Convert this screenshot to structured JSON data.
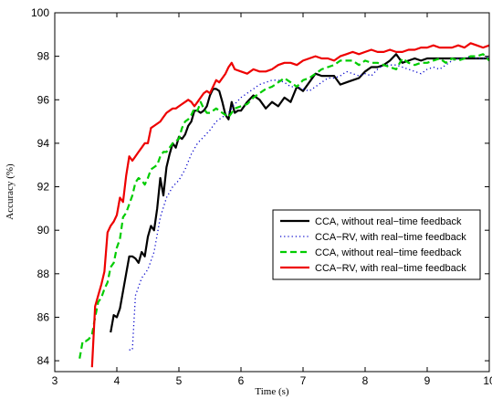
{
  "chart_data": {
    "type": "line",
    "title": "",
    "xlabel": "Time (s)",
    "ylabel": "Accuracy (%)",
    "xlim": [
      3,
      10
    ],
    "ylim": [
      83.5,
      100
    ],
    "xticks": [
      3,
      4,
      5,
      6,
      7,
      8,
      9,
      10
    ],
    "yticks": [
      84,
      86,
      88,
      90,
      92,
      94,
      96,
      98,
      100
    ],
    "grid": false,
    "legend_position": "right",
    "series": [
      {
        "name": "CCA, without real−time feedback",
        "color": "#000000",
        "style": "solid",
        "x": [
          3.9,
          3.95,
          4.0,
          4.05,
          4.1,
          4.15,
          4.2,
          4.25,
          4.3,
          4.35,
          4.4,
          4.45,
          4.5,
          4.55,
          4.6,
          4.65,
          4.7,
          4.75,
          4.8,
          4.85,
          4.9,
          4.95,
          5.0,
          5.05,
          5.1,
          5.15,
          5.2,
          5.25,
          5.3,
          5.35,
          5.4,
          5.45,
          5.5,
          5.55,
          5.6,
          5.65,
          5.7,
          5.75,
          5.8,
          5.85,
          5.9,
          5.95,
          6.0,
          6.1,
          6.2,
          6.3,
          6.4,
          6.5,
          6.6,
          6.7,
          6.8,
          6.9,
          7.0,
          7.1,
          7.2,
          7.3,
          7.4,
          7.5,
          7.6,
          7.7,
          7.8,
          7.9,
          8.0,
          8.1,
          8.2,
          8.3,
          8.4,
          8.5,
          8.6,
          8.7,
          8.8,
          8.9,
          9.0,
          9.1,
          9.2,
          9.3,
          9.4,
          9.5,
          9.6,
          9.7,
          9.8,
          9.9,
          10.0
        ],
        "values": [
          85.3,
          86.1,
          86.0,
          86.4,
          87.2,
          88.0,
          88.8,
          88.8,
          88.7,
          88.5,
          89.0,
          88.8,
          89.7,
          90.2,
          90.0,
          91.0,
          92.4,
          91.6,
          92.9,
          93.5,
          94.0,
          93.8,
          94.3,
          94.2,
          94.4,
          94.8,
          95.0,
          95.5,
          95.5,
          95.4,
          95.5,
          95.7,
          96.2,
          96.5,
          96.5,
          96.4,
          95.9,
          95.3,
          95.1,
          95.9,
          95.4,
          95.5,
          95.5,
          95.9,
          96.2,
          96.0,
          95.6,
          95.9,
          95.7,
          96.1,
          95.9,
          96.6,
          96.4,
          96.8,
          97.2,
          97.1,
          97.1,
          97.1,
          96.7,
          96.8,
          96.9,
          97.0,
          97.3,
          97.5,
          97.5,
          97.6,
          97.8,
          98.1,
          97.7,
          97.8,
          97.9,
          97.8,
          97.9,
          97.9,
          97.9,
          97.9,
          97.9,
          97.9,
          97.9,
          97.9,
          97.9,
          97.9,
          97.9
        ],
        "x_note": ""
      },
      {
        "name": "CCA−RV, with real−time feedback",
        "color": "#0000cc",
        "style": "dotted",
        "x": [
          4.2,
          4.25,
          4.3,
          4.4,
          4.5,
          4.6,
          4.7,
          4.8,
          4.9,
          5.0,
          5.1,
          5.2,
          5.3,
          5.4,
          5.5,
          5.6,
          5.7,
          5.8,
          5.9,
          6.0,
          6.1,
          6.2,
          6.3,
          6.4,
          6.5,
          6.6,
          6.7,
          6.8,
          6.9,
          7.0,
          7.1,
          7.2,
          7.3,
          7.4,
          7.5,
          7.6,
          7.7,
          7.8,
          7.9,
          8.0,
          8.1,
          8.2,
          8.3,
          8.4,
          8.5,
          8.6,
          8.7,
          8.8,
          8.9,
          9.0,
          9.1,
          9.2,
          9.3,
          9.4,
          9.5,
          9.6,
          9.7,
          9.8,
          9.9,
          10.0
        ],
        "values": [
          84.5,
          84.5,
          87.0,
          87.8,
          88.2,
          89.0,
          90.6,
          91.5,
          92.0,
          92.3,
          92.8,
          93.5,
          94.0,
          94.3,
          94.6,
          95.0,
          95.2,
          95.4,
          95.8,
          96.1,
          96.3,
          96.5,
          96.7,
          96.8,
          96.9,
          96.9,
          96.8,
          96.6,
          96.6,
          96.5,
          96.4,
          96.6,
          96.8,
          97.0,
          97.0,
          97.1,
          97.3,
          97.2,
          97.1,
          97.2,
          97.1,
          97.4,
          97.6,
          97.6,
          97.6,
          97.5,
          97.4,
          97.3,
          97.2,
          97.4,
          97.5,
          97.4,
          97.6,
          97.8,
          97.9,
          97.9,
          98.0,
          97.9,
          97.9,
          98.0
        ],
        "x_note": ""
      },
      {
        "name": "CCA, without real−time feedback",
        "color": "#00cc00",
        "style": "dashed",
        "x": [
          3.4,
          3.45,
          3.5,
          3.55,
          3.6,
          3.65,
          3.7,
          3.75,
          3.8,
          3.85,
          3.9,
          3.95,
          4.0,
          4.05,
          4.1,
          4.15,
          4.2,
          4.25,
          4.3,
          4.35,
          4.4,
          4.45,
          4.5,
          4.55,
          4.6,
          4.65,
          4.7,
          4.75,
          4.8,
          4.85,
          4.9,
          4.95,
          5.0,
          5.05,
          5.1,
          5.15,
          5.2,
          5.25,
          5.3,
          5.35,
          5.4,
          5.45,
          5.5,
          5.55,
          5.6,
          5.65,
          5.7,
          5.75,
          5.8,
          5.85,
          5.9,
          6.0,
          6.1,
          6.2,
          6.3,
          6.4,
          6.5,
          6.6,
          6.7,
          6.8,
          6.9,
          7.0,
          7.1,
          7.2,
          7.3,
          7.4,
          7.5,
          7.6,
          7.7,
          7.8,
          7.9,
          8.0,
          8.1,
          8.2,
          8.3,
          8.4,
          8.5,
          8.6,
          8.7,
          8.8,
          8.9,
          9.0,
          9.1,
          9.2,
          9.3,
          9.4,
          9.5,
          9.6,
          9.7,
          9.8,
          9.9,
          10.0
        ],
        "values": [
          84.1,
          84.9,
          84.9,
          85.0,
          85.2,
          86.0,
          86.7,
          86.9,
          87.3,
          87.6,
          88.3,
          88.5,
          89.2,
          89.6,
          90.6,
          90.8,
          91.2,
          91.6,
          92.2,
          92.4,
          92.3,
          92.1,
          92.4,
          92.8,
          92.9,
          93.0,
          93.4,
          93.6,
          93.6,
          93.8,
          94.0,
          94.1,
          94.2,
          94.7,
          95.0,
          95.1,
          95.3,
          95.6,
          95.5,
          95.9,
          95.6,
          95.4,
          95.4,
          95.5,
          95.6,
          95.5,
          95.4,
          95.3,
          95.2,
          95.4,
          95.6,
          95.7,
          95.8,
          96.1,
          96.3,
          96.5,
          96.6,
          96.8,
          97.0,
          96.8,
          96.6,
          96.9,
          97.0,
          97.2,
          97.4,
          97.5,
          97.6,
          97.8,
          97.8,
          97.8,
          97.6,
          97.8,
          97.7,
          97.7,
          97.6,
          97.5,
          97.4,
          97.9,
          97.7,
          97.6,
          97.7,
          97.7,
          97.8,
          97.9,
          97.7,
          97.9,
          97.8,
          97.9,
          98.0,
          98.0,
          98.1,
          97.8
        ],
        "x_note": ""
      },
      {
        "name": "CCA−RV, with real−time feedback",
        "color": "#ee0000",
        "style": "solid",
        "x": [
          3.6,
          3.65,
          3.7,
          3.75,
          3.8,
          3.85,
          3.9,
          3.95,
          4.0,
          4.05,
          4.1,
          4.15,
          4.2,
          4.25,
          4.3,
          4.35,
          4.4,
          4.45,
          4.5,
          4.55,
          4.6,
          4.65,
          4.7,
          4.75,
          4.8,
          4.85,
          4.9,
          4.95,
          5.0,
          5.05,
          5.1,
          5.15,
          5.2,
          5.25,
          5.3,
          5.35,
          5.4,
          5.45,
          5.5,
          5.55,
          5.6,
          5.65,
          5.7,
          5.75,
          5.8,
          5.85,
          5.9,
          6.0,
          6.1,
          6.2,
          6.3,
          6.4,
          6.5,
          6.6,
          6.7,
          6.8,
          6.9,
          7.0,
          7.1,
          7.2,
          7.3,
          7.4,
          7.5,
          7.6,
          7.7,
          7.8,
          7.9,
          8.0,
          8.1,
          8.2,
          8.3,
          8.4,
          8.5,
          8.6,
          8.7,
          8.8,
          8.9,
          9.0,
          9.1,
          9.2,
          9.3,
          9.4,
          9.5,
          9.6,
          9.7,
          9.8,
          9.9,
          10.0
        ],
        "values": [
          83.7,
          86.5,
          87.0,
          87.5,
          88.1,
          89.9,
          90.2,
          90.4,
          90.7,
          91.5,
          91.3,
          92.5,
          93.4,
          93.2,
          93.4,
          93.6,
          93.8,
          94.0,
          94.0,
          94.7,
          94.8,
          94.9,
          95.0,
          95.2,
          95.4,
          95.5,
          95.6,
          95.6,
          95.7,
          95.8,
          95.9,
          96.0,
          95.9,
          95.7,
          95.9,
          96.1,
          96.3,
          96.4,
          96.3,
          96.6,
          96.9,
          96.8,
          97.0,
          97.2,
          97.5,
          97.7,
          97.4,
          97.3,
          97.2,
          97.4,
          97.3,
          97.3,
          97.4,
          97.6,
          97.7,
          97.7,
          97.6,
          97.8,
          97.9,
          98.0,
          97.9,
          97.9,
          97.8,
          98.0,
          98.1,
          98.2,
          98.1,
          98.2,
          98.3,
          98.2,
          98.2,
          98.3,
          98.2,
          98.2,
          98.3,
          98.3,
          98.4,
          98.4,
          98.5,
          98.4,
          98.4,
          98.4,
          98.5,
          98.4,
          98.6,
          98.5,
          98.4,
          98.5
        ],
        "x_note": ""
      }
    ]
  }
}
